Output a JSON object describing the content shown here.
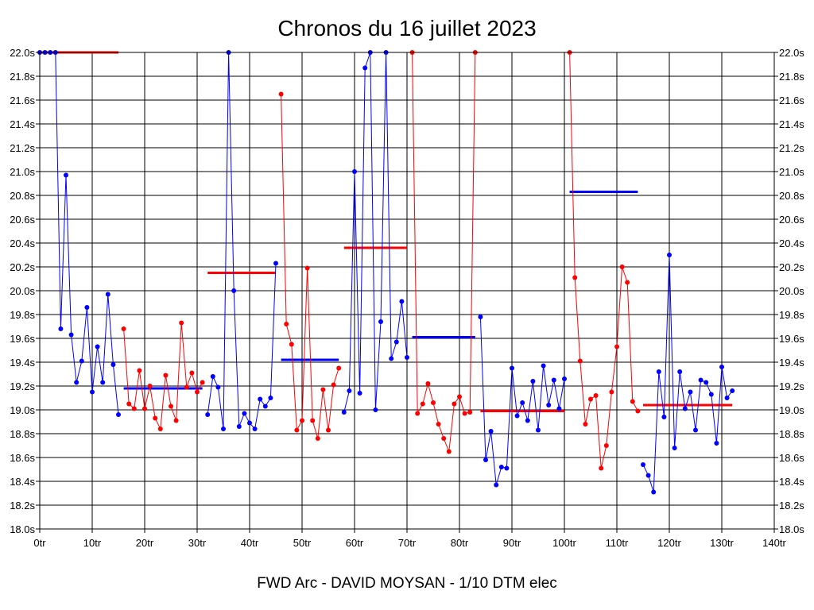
{
  "chart_data": {
    "type": "line",
    "title": "Chronos du 16 juillet 2023",
    "footer": "FWD Arc - DAVID MOYSAN - 1/10 DTM elec",
    "xlim": [
      0,
      140
    ],
    "ylim": [
      18.0,
      22.0
    ],
    "x_tick_labels": [
      "0tr",
      "10tr",
      "20tr",
      "30tr",
      "40tr",
      "50tr",
      "60tr",
      "70tr",
      "80tr",
      "90tr",
      "100tr",
      "110tr",
      "120tr",
      "130tr",
      "140tr"
    ],
    "y_tick_labels": [
      "18.0s",
      "18.2s",
      "18.4s",
      "18.6s",
      "18.8s",
      "19.0s",
      "19.2s",
      "19.4s",
      "19.6s",
      "19.8s",
      "20.0s",
      "20.2s",
      "20.4s",
      "20.6s",
      "20.8s",
      "21.0s",
      "21.2s",
      "21.4s",
      "21.6s",
      "21.8s",
      "22.0s"
    ],
    "grid": true,
    "series": [
      {
        "color": "#0000ff",
        "x": [
          0,
          1,
          2,
          3,
          4,
          5,
          6,
          7,
          8,
          9,
          10,
          11,
          12,
          13,
          14,
          15
        ],
        "y": [
          22.0,
          22.0,
          22.0,
          22.0,
          19.68,
          20.97,
          19.63,
          19.23,
          19.41,
          19.86,
          19.15,
          19.53,
          19.23,
          19.97,
          19.38,
          18.96
        ]
      },
      {
        "color": "#ff0000",
        "x": [
          16,
          17,
          18,
          19,
          20,
          21,
          22,
          23,
          24,
          25,
          26,
          27,
          28,
          29,
          30,
          31
        ],
        "y": [
          19.68,
          19.05,
          19.01,
          19.33,
          19.01,
          19.2,
          18.93,
          18.84,
          19.29,
          19.03,
          18.91,
          19.73,
          19.19,
          19.31,
          19.15,
          19.23
        ]
      },
      {
        "color": "#0000ff",
        "x": [
          32,
          33,
          34,
          35,
          36,
          37,
          38,
          39,
          40,
          41,
          42,
          43,
          44,
          45
        ],
        "y": [
          18.96,
          19.28,
          19.19,
          18.84,
          22.0,
          20.0,
          18.86,
          18.97,
          18.89,
          18.84,
          19.09,
          19.03,
          19.1,
          20.23
        ]
      },
      {
        "color": "#ff0000",
        "x": [
          46,
          47,
          48,
          49,
          50,
          51,
          52,
          53,
          54,
          55,
          56,
          57
        ],
        "y": [
          21.65,
          19.72,
          19.55,
          18.83,
          18.91,
          20.19,
          18.91,
          18.76,
          19.17,
          18.83,
          19.21,
          19.35
        ]
      },
      {
        "color": "#0000ff",
        "x": [
          58,
          59,
          60,
          61,
          62,
          63,
          64,
          65,
          66,
          67,
          68,
          69,
          70
        ],
        "y": [
          18.98,
          19.16,
          21.0,
          19.14,
          21.87,
          22.0,
          19.0,
          19.74,
          22.0,
          19.43,
          19.57,
          19.91,
          19.44
        ]
      },
      {
        "color": "#ff0000",
        "x": [
          71,
          72,
          73,
          74,
          75,
          76,
          77,
          78,
          79,
          80,
          81,
          82,
          83
        ],
        "y": [
          22.0,
          18.97,
          19.05,
          19.22,
          19.06,
          18.88,
          18.76,
          18.65,
          19.05,
          19.11,
          18.97,
          18.98,
          22.0
        ]
      },
      {
        "color": "#0000ff",
        "x": [
          84,
          85,
          86,
          87,
          88,
          89,
          90,
          91,
          92,
          93,
          94,
          95,
          96,
          97,
          98,
          99,
          100
        ],
        "y": [
          19.78,
          18.58,
          18.82,
          18.37,
          18.52,
          18.51,
          19.35,
          18.95,
          19.06,
          18.91,
          19.24,
          18.83,
          19.37,
          19.04,
          19.25,
          19.01,
          19.26
        ]
      },
      {
        "color": "#ff0000",
        "x": [
          101,
          102,
          103,
          104,
          105,
          106,
          107,
          108,
          109,
          110,
          111,
          112,
          113,
          114
        ],
        "y": [
          22.0,
          20.11,
          19.41,
          18.88,
          19.09,
          19.12,
          18.51,
          18.7,
          19.15,
          19.53,
          20.2,
          20.07,
          19.07,
          18.99
        ]
      },
      {
        "color": "#0000ff",
        "x": [
          115,
          116,
          117,
          118,
          119,
          120,
          121,
          122,
          123,
          124,
          125,
          126,
          127,
          128,
          129,
          130,
          131,
          132
        ],
        "y": [
          18.54,
          18.45,
          18.31,
          19.32,
          18.94,
          20.3,
          18.68,
          19.32,
          19.01,
          19.15,
          18.83,
          19.25,
          19.23,
          19.13,
          18.72,
          19.36,
          19.1,
          19.16
        ]
      }
    ],
    "averages": [
      {
        "color": "#ff0000",
        "x_start": 0,
        "x_end": 15,
        "y": 22.0
      },
      {
        "color": "#0000ff",
        "x_start": 16,
        "x_end": 31,
        "y": 19.18
      },
      {
        "color": "#ff0000",
        "x_start": 32,
        "x_end": 45,
        "y": 20.15
      },
      {
        "color": "#0000ff",
        "x_start": 46,
        "x_end": 57,
        "y": 19.42
      },
      {
        "color": "#ff0000",
        "x_start": 58,
        "x_end": 70,
        "y": 20.36
      },
      {
        "color": "#0000ff",
        "x_start": 71,
        "x_end": 83,
        "y": 19.61
      },
      {
        "color": "#ff0000",
        "x_start": 84,
        "x_end": 100,
        "y": 18.99
      },
      {
        "color": "#0000ff",
        "x_start": 101,
        "x_end": 114,
        "y": 20.83
      },
      {
        "color": "#ff0000",
        "x_start": 115,
        "x_end": 132,
        "y": 19.04
      }
    ]
  }
}
